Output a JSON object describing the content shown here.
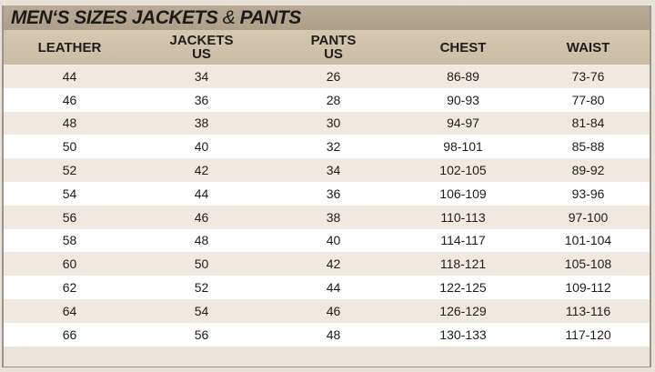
{
  "title": {
    "main": "MEN‘S SIZES JACKETS",
    "amp": "&",
    "tail": "PANTS"
  },
  "headers": [
    [
      "LEATHER",
      ""
    ],
    [
      "JACKETS",
      "US"
    ],
    [
      "PANTS",
      "US"
    ],
    [
      "CHEST",
      ""
    ],
    [
      "WAIST",
      ""
    ]
  ],
  "rows": [
    [
      "44",
      "34",
      "26",
      "86-89",
      "73-76"
    ],
    [
      "46",
      "36",
      "28",
      "90-93",
      "77-80"
    ],
    [
      "48",
      "38",
      "30",
      "94-97",
      "81-84"
    ],
    [
      "50",
      "40",
      "32",
      "98-101",
      "85-88"
    ],
    [
      "52",
      "42",
      "34",
      "102-105",
      "89-92"
    ],
    [
      "54",
      "44",
      "36",
      "106-109",
      "93-96"
    ],
    [
      "56",
      "46",
      "38",
      "110-113",
      "97-100"
    ],
    [
      "58",
      "48",
      "40",
      "114-117",
      "101-104"
    ],
    [
      "60",
      "50",
      "42",
      "118-121",
      "105-108"
    ],
    [
      "62",
      "52",
      "44",
      "122-125",
      "109-112"
    ],
    [
      "64",
      "54",
      "46",
      "126-129",
      "113-116"
    ],
    [
      "66",
      "56",
      "48",
      "130-133",
      "117-120"
    ]
  ]
}
